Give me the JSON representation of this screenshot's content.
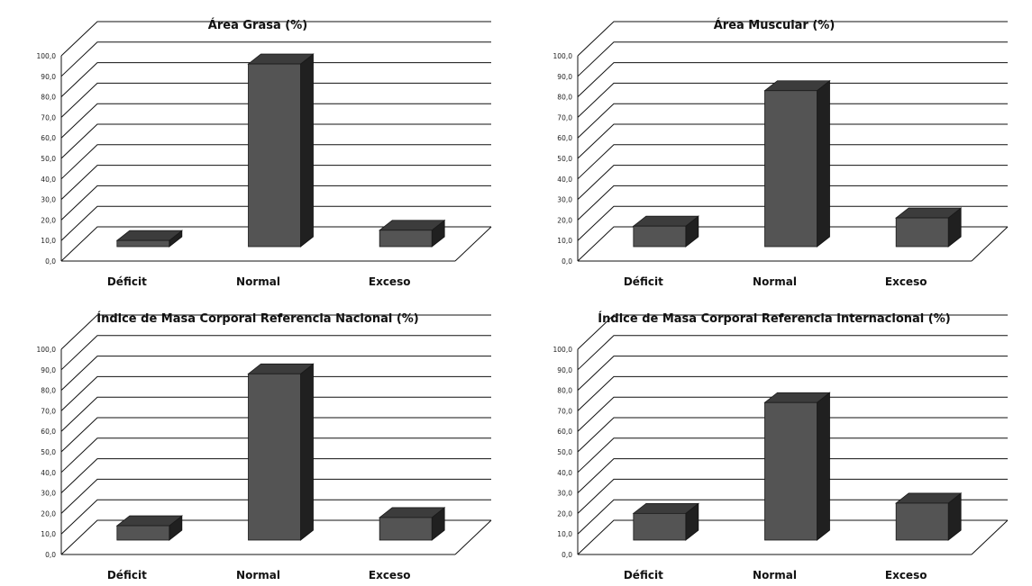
{
  "chart_data": [
    {
      "type": "bar",
      "title": "Área Grasa  (%)",
      "categories": [
        "Déficit",
        "Normal",
        "Exceso"
      ],
      "values": [
        3.0,
        89.0,
        8.0
      ],
      "ylim": [
        0,
        100
      ],
      "yticks": [
        "0,0",
        "10,0",
        "20,0",
        "30,0",
        "40,0",
        "50,0",
        "60,0",
        "70,0",
        "80,0",
        "90,0",
        "100,0"
      ],
      "style": "3d-column",
      "grid": true,
      "bar_color": "#545454"
    },
    {
      "type": "bar",
      "title": "Área Muscular  (%)",
      "categories": [
        "Déficit",
        "Normal",
        "Exceso"
      ],
      "values": [
        10.0,
        76.0,
        14.0
      ],
      "ylim": [
        0,
        100
      ],
      "yticks": [
        "0,0",
        "10,0",
        "20,0",
        "30,0",
        "40,0",
        "50,0",
        "60,0",
        "70,0",
        "80,0",
        "90,0",
        "100,0"
      ],
      "style": "3d-column",
      "grid": true,
      "bar_color": "#545454"
    },
    {
      "type": "bar",
      "title": "Índice de Masa Corporal  Referencia Nacional  (%)",
      "categories": [
        "Déficit",
        "Normal",
        "Exceso"
      ],
      "values": [
        7.0,
        81.0,
        11.0
      ],
      "ylim": [
        0,
        100
      ],
      "yticks": [
        "0,0",
        "10,0",
        "20,0",
        "30,0",
        "40,0",
        "50,0",
        "60,0",
        "70,0",
        "80,0",
        "90,0",
        "100,0"
      ],
      "style": "3d-column",
      "grid": true,
      "bar_color": "#545454"
    },
    {
      "type": "bar",
      "title": "Índice de Masa Corporal  Referencia Internacional (%)",
      "categories": [
        "Déficit",
        "Normal",
        "Exceso"
      ],
      "values": [
        13.0,
        67.0,
        18.0
      ],
      "ylim": [
        0,
        100
      ],
      "yticks": [
        "0,0",
        "10,0",
        "20,0",
        "30,0",
        "40,0",
        "50,0",
        "60,0",
        "70,0",
        "80,0",
        "90,0",
        "100,0"
      ],
      "style": "3d-column",
      "grid": true,
      "bar_color": "#545454"
    }
  ]
}
